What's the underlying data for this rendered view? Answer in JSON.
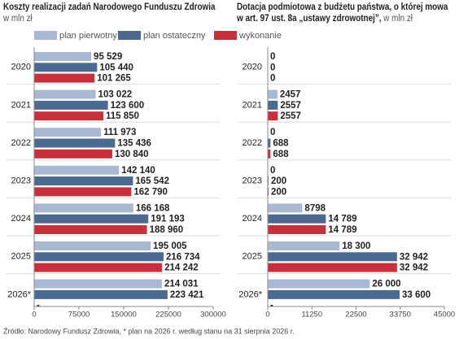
{
  "chart_data": [
    {
      "type": "bar",
      "orientation": "horizontal",
      "title": "Koszty realizacji zadań Narodowego Funduszu Zdrowia",
      "subtitle": "w mln zł",
      "categories": [
        "2020",
        "2021",
        "2022",
        "2023",
        "2024",
        "2025",
        "2026*"
      ],
      "series": [
        {
          "name": "plan pierwotny",
          "color": "#a9b9d4",
          "values": [
            95529,
            103022,
            111973,
            142140,
            166168,
            195005,
            214031
          ],
          "value_labels": [
            "95 529",
            "103 022",
            "111 973",
            "142 140",
            "166 168",
            "195 005",
            "214 031"
          ]
        },
        {
          "name": "plan ostateczny",
          "color": "#4b6a90",
          "values": [
            105440,
            123600,
            135436,
            165542,
            191193,
            216734,
            223421
          ],
          "value_labels": [
            "105 440",
            "123 600",
            "135 436",
            "165 542",
            "191 193",
            "216 734",
            "223 421"
          ]
        },
        {
          "name": "wykonanie",
          "color": "#c8303c",
          "values": [
            101265,
            115850,
            130840,
            162790,
            188960,
            214242,
            null
          ],
          "value_labels": [
            "101 265",
            "115 850",
            "130 840",
            "162 790",
            "188 960",
            "214 242",
            "-"
          ]
        }
      ],
      "xlim": [
        0,
        300000
      ],
      "xticks": [
        0,
        75000,
        150000,
        225000,
        300000
      ]
    },
    {
      "type": "bar",
      "orientation": "horizontal",
      "title": "Dotacja podmiotowa z budżetu państwa, o której mowa w art. 97 ust. 8a „ustawy zdrowotnej”,",
      "subtitle": "w mln zł",
      "categories": [
        "2020",
        "2021",
        "2022",
        "2023",
        "2024",
        "2025",
        "2026*"
      ],
      "series": [
        {
          "color": "#a9b9d4",
          "values": [
            0,
            2457,
            0,
            0,
            8798,
            18300,
            26000
          ],
          "value_labels": [
            "0",
            "2457",
            "0",
            "0",
            "8798",
            "18 300",
            "26 000"
          ]
        },
        {
          "color": "#4b6a90",
          "values": [
            0,
            2557,
            688,
            200,
            14789,
            32942,
            33600
          ],
          "value_labels": [
            "0",
            "2557",
            "688",
            "200",
            "14 789",
            "32 942",
            "33 600"
          ]
        },
        {
          "color": "#c8303c",
          "values": [
            0,
            2557,
            688,
            200,
            14789,
            32942,
            null
          ],
          "value_labels": [
            "0",
            "2557",
            "688",
            "200",
            "14 789",
            "32 942",
            "-"
          ]
        }
      ],
      "xlim": [
        0,
        45000
      ],
      "xticks": [
        0,
        11250,
        22500,
        33750,
        45000
      ]
    }
  ],
  "source": "Źródło: Narodowy Fundusz Zdrowia, * plan na 2026 r. według stanu na 31 sierpnia 2026 r."
}
